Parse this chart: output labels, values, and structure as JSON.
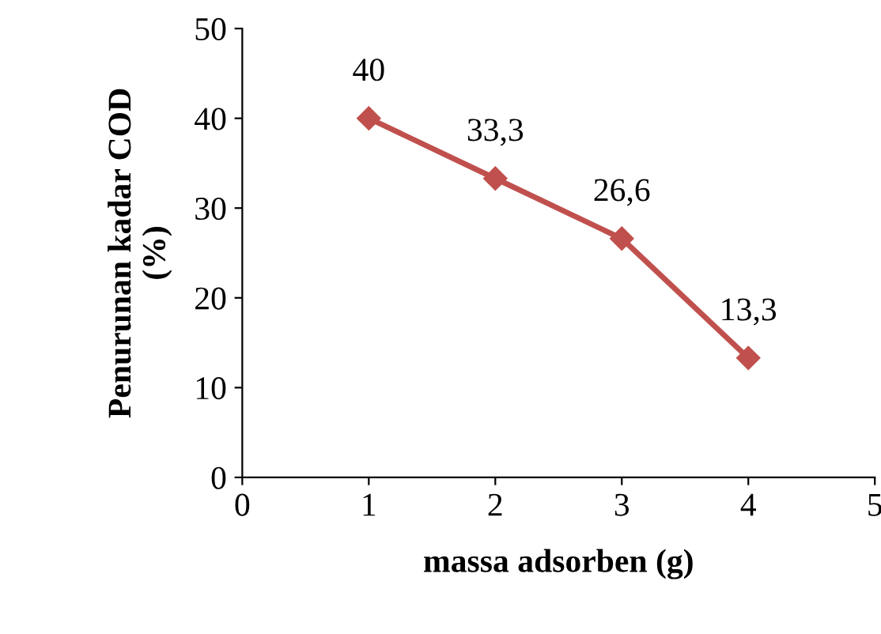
{
  "chart_data": {
    "type": "line",
    "xlabel": "massa adsorben (g)",
    "ylabel": "Penurunan kadar COD\n(%)",
    "x": [
      1,
      2,
      3,
      4
    ],
    "series": [
      {
        "color": "#c0504d",
        "values": [
          40,
          33.3,
          26.6,
          13.3
        ],
        "value_labels": [
          "40",
          "33,3",
          "26,6",
          "13,3"
        ]
      }
    ],
    "xlim": [
      0,
      5
    ],
    "xticks": [
      0,
      1,
      2,
      3,
      4,
      5
    ],
    "ylim": [
      0,
      50
    ],
    "yticks": [
      0,
      10,
      20,
      30,
      40,
      50
    ],
    "grid": false,
    "marker": "diamond",
    "line_style": "solid"
  }
}
